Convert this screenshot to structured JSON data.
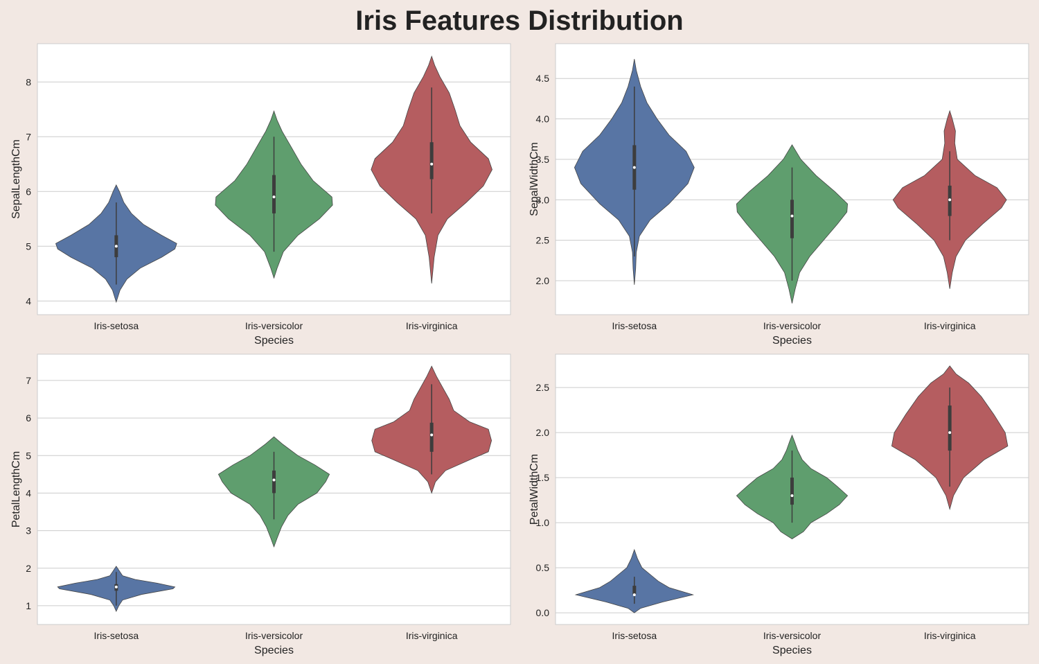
{
  "title": "Iris Features Distribution",
  "colors": {
    "Iris-setosa": "#5875a4",
    "Iris-versicolor": "#5f9e6e",
    "Iris-virginica": "#b55d60",
    "background": "#f2e8e3",
    "plot_bg": "#ffffff",
    "grid": "#cccccc"
  },
  "chart_data": [
    {
      "type": "violin",
      "xlabel": "Species",
      "ylabel": "SepalLengthCm",
      "categories": [
        "Iris-setosa",
        "Iris-versicolor",
        "Iris-virginica"
      ],
      "ylim": [
        3.75,
        8.7
      ],
      "yticks": [
        4,
        5,
        6,
        7,
        8
      ],
      "ytick_labels": [
        "4",
        "5",
        "6",
        "7",
        "8"
      ],
      "grid": true,
      "violins": [
        {
          "category": "Iris-setosa",
          "min": 4.3,
          "q1": 4.8,
          "median": 5.0,
          "q3": 5.2,
          "max": 5.8,
          "density": [
            [
              3.98,
              0
            ],
            [
              4.2,
              0.06
            ],
            [
              4.4,
              0.17
            ],
            [
              4.6,
              0.38
            ],
            [
              4.8,
              0.72
            ],
            [
              4.95,
              0.93
            ],
            [
              5.05,
              0.96
            ],
            [
              5.2,
              0.72
            ],
            [
              5.4,
              0.43
            ],
            [
              5.6,
              0.24
            ],
            [
              5.8,
              0.12
            ],
            [
              6.0,
              0.05
            ],
            [
              6.12,
              0
            ]
          ]
        },
        {
          "category": "Iris-versicolor",
          "min": 4.9,
          "q1": 5.6,
          "median": 5.9,
          "q3": 6.3,
          "max": 7.0,
          "density": [
            [
              4.42,
              0
            ],
            [
              4.6,
              0.05
            ],
            [
              4.9,
              0.15
            ],
            [
              5.2,
              0.38
            ],
            [
              5.5,
              0.72
            ],
            [
              5.75,
              0.93
            ],
            [
              5.9,
              0.92
            ],
            [
              6.2,
              0.62
            ],
            [
              6.5,
              0.43
            ],
            [
              6.8,
              0.28
            ],
            [
              7.1,
              0.13
            ],
            [
              7.3,
              0.05
            ],
            [
              7.47,
              0
            ]
          ]
        },
        {
          "category": "Iris-virginica",
          "min": 5.6,
          "q1": 6.225,
          "median": 6.5,
          "q3": 6.9,
          "max": 7.9,
          "density": [
            [
              4.32,
              0
            ],
            [
              4.8,
              0.04
            ],
            [
              5.2,
              0.1
            ],
            [
              5.5,
              0.25
            ],
            [
              5.8,
              0.55
            ],
            [
              6.1,
              0.82
            ],
            [
              6.4,
              0.96
            ],
            [
              6.6,
              0.9
            ],
            [
              6.9,
              0.62
            ],
            [
              7.2,
              0.45
            ],
            [
              7.5,
              0.37
            ],
            [
              7.8,
              0.28
            ],
            [
              8.1,
              0.13
            ],
            [
              8.3,
              0.05
            ],
            [
              8.47,
              0
            ]
          ]
        }
      ]
    },
    {
      "type": "violin",
      "xlabel": "Species",
      "ylabel": "SepalWidthCm",
      "categories": [
        "Iris-setosa",
        "Iris-versicolor",
        "Iris-virginica"
      ],
      "ylim": [
        1.58,
        4.93
      ],
      "yticks": [
        2.0,
        2.5,
        3.0,
        3.5,
        4.0,
        4.5
      ],
      "ytick_labels": [
        "2.0",
        "2.5",
        "3.0",
        "3.5",
        "4.0",
        "4.5"
      ],
      "grid": true,
      "violins": [
        {
          "category": "Iris-setosa",
          "min": 2.3,
          "q1": 3.125,
          "median": 3.4,
          "q3": 3.675,
          "max": 4.4,
          "density": [
            [
              1.95,
              0
            ],
            [
              2.15,
              0.02
            ],
            [
              2.35,
              0.03
            ],
            [
              2.55,
              0.08
            ],
            [
              2.75,
              0.25
            ],
            [
              2.95,
              0.55
            ],
            [
              3.2,
              0.85
            ],
            [
              3.4,
              0.95
            ],
            [
              3.6,
              0.82
            ],
            [
              3.8,
              0.55
            ],
            [
              4.0,
              0.36
            ],
            [
              4.2,
              0.2
            ],
            [
              4.4,
              0.1
            ],
            [
              4.6,
              0.03
            ],
            [
              4.74,
              0
            ]
          ]
        },
        {
          "category": "Iris-versicolor",
          "min": 2.0,
          "q1": 2.525,
          "median": 2.8,
          "q3": 3.0,
          "max": 3.4,
          "density": [
            [
              1.72,
              0
            ],
            [
              1.9,
              0.05
            ],
            [
              2.1,
              0.12
            ],
            [
              2.3,
              0.28
            ],
            [
              2.5,
              0.5
            ],
            [
              2.7,
              0.72
            ],
            [
              2.85,
              0.87
            ],
            [
              2.95,
              0.88
            ],
            [
              3.1,
              0.68
            ],
            [
              3.3,
              0.38
            ],
            [
              3.5,
              0.14
            ],
            [
              3.68,
              0
            ]
          ]
        },
        {
          "category": "Iris-virginica",
          "min": 2.5,
          "q1": 2.8,
          "median": 3.0,
          "q3": 3.175,
          "max": 3.6,
          "density": [
            [
              1.9,
              0
            ],
            [
              2.1,
              0.04
            ],
            [
              2.3,
              0.1
            ],
            [
              2.5,
              0.25
            ],
            [
              2.7,
              0.52
            ],
            [
              2.9,
              0.82
            ],
            [
              3.0,
              0.9
            ],
            [
              3.15,
              0.75
            ],
            [
              3.3,
              0.4
            ],
            [
              3.5,
              0.12
            ],
            [
              3.7,
              0.08
            ],
            [
              3.85,
              0.09
            ],
            [
              4.0,
              0.04
            ],
            [
              4.1,
              0
            ]
          ]
        }
      ]
    },
    {
      "type": "violin",
      "xlabel": "Species",
      "ylabel": "PetalLengthCm",
      "categories": [
        "Iris-setosa",
        "Iris-versicolor",
        "Iris-virginica"
      ],
      "ylim": [
        0.5,
        7.7
      ],
      "yticks": [
        1,
        2,
        3,
        4,
        5,
        6,
        7
      ],
      "ytick_labels": [
        "1",
        "2",
        "3",
        "4",
        "5",
        "6",
        "7"
      ],
      "grid": true,
      "violins": [
        {
          "category": "Iris-setosa",
          "min": 1.0,
          "q1": 1.4,
          "median": 1.5,
          "q3": 1.575,
          "max": 1.9,
          "density": [
            [
              0.85,
              0
            ],
            [
              1.0,
              0.04
            ],
            [
              1.15,
              0.1
            ],
            [
              1.3,
              0.4
            ],
            [
              1.45,
              0.9
            ],
            [
              1.5,
              0.93
            ],
            [
              1.6,
              0.65
            ],
            [
              1.7,
              0.3
            ],
            [
              1.8,
              0.1
            ],
            [
              1.9,
              0.06
            ],
            [
              2.05,
              0
            ]
          ]
        },
        {
          "category": "Iris-versicolor",
          "min": 3.3,
          "q1": 4.0,
          "median": 4.35,
          "q3": 4.6,
          "max": 5.1,
          "density": [
            [
              2.57,
              0
            ],
            [
              2.8,
              0.05
            ],
            [
              3.1,
              0.12
            ],
            [
              3.4,
              0.22
            ],
            [
              3.7,
              0.38
            ],
            [
              4.0,
              0.68
            ],
            [
              4.3,
              0.82
            ],
            [
              4.5,
              0.88
            ],
            [
              4.75,
              0.65
            ],
            [
              5.0,
              0.38
            ],
            [
              5.3,
              0.14
            ],
            [
              5.5,
              0
            ]
          ]
        },
        {
          "category": "Iris-virginica",
          "min": 4.5,
          "q1": 5.1,
          "median": 5.55,
          "q3": 5.875,
          "max": 6.9,
          "density": [
            [
              4.0,
              0
            ],
            [
              4.3,
              0.06
            ],
            [
              4.6,
              0.22
            ],
            [
              4.9,
              0.62
            ],
            [
              5.1,
              0.9
            ],
            [
              5.4,
              0.95
            ],
            [
              5.7,
              0.9
            ],
            [
              5.9,
              0.6
            ],
            [
              6.2,
              0.35
            ],
            [
              6.5,
              0.28
            ],
            [
              6.8,
              0.18
            ],
            [
              7.1,
              0.08
            ],
            [
              7.38,
              0
            ]
          ]
        }
      ]
    },
    {
      "type": "violin",
      "xlabel": "Species",
      "ylabel": "PetalWidthCm",
      "categories": [
        "Iris-setosa",
        "Iris-versicolor",
        "Iris-virginica"
      ],
      "ylim": [
        -0.13,
        2.87
      ],
      "yticks": [
        0.0,
        0.5,
        1.0,
        1.5,
        2.0,
        2.5
      ],
      "ytick_labels": [
        "0.0",
        "0.5",
        "1.0",
        "1.5",
        "2.0",
        "2.5"
      ],
      "grid": true,
      "violins": [
        {
          "category": "Iris-setosa",
          "min": 0.1,
          "q1": 0.2,
          "median": 0.2,
          "q3": 0.3,
          "max": 0.4,
          "density": [
            [
              0.0,
              0
            ],
            [
              0.05,
              0.1
            ],
            [
              0.12,
              0.45
            ],
            [
              0.2,
              0.93
            ],
            [
              0.28,
              0.55
            ],
            [
              0.35,
              0.38
            ],
            [
              0.42,
              0.26
            ],
            [
              0.5,
              0.12
            ],
            [
              0.6,
              0.05
            ],
            [
              0.7,
              0
            ]
          ]
        },
        {
          "category": "Iris-versicolor",
          "min": 1.0,
          "q1": 1.2,
          "median": 1.3,
          "q3": 1.5,
          "max": 1.8,
          "density": [
            [
              0.82,
              0
            ],
            [
              0.9,
              0.18
            ],
            [
              1.0,
              0.3
            ],
            [
              1.1,
              0.55
            ],
            [
              1.2,
              0.75
            ],
            [
              1.3,
              0.88
            ],
            [
              1.4,
              0.72
            ],
            [
              1.5,
              0.55
            ],
            [
              1.6,
              0.3
            ],
            [
              1.7,
              0.16
            ],
            [
              1.8,
              0.09
            ],
            [
              1.9,
              0.04
            ],
            [
              1.97,
              0
            ]
          ]
        },
        {
          "category": "Iris-virginica",
          "min": 1.4,
          "q1": 1.8,
          "median": 2.0,
          "q3": 2.3,
          "max": 2.5,
          "density": [
            [
              1.15,
              0
            ],
            [
              1.3,
              0.06
            ],
            [
              1.5,
              0.22
            ],
            [
              1.7,
              0.55
            ],
            [
              1.85,
              0.92
            ],
            [
              2.0,
              0.88
            ],
            [
              2.2,
              0.7
            ],
            [
              2.4,
              0.5
            ],
            [
              2.55,
              0.3
            ],
            [
              2.65,
              0.1
            ],
            [
              2.74,
              0
            ]
          ]
        }
      ]
    }
  ]
}
